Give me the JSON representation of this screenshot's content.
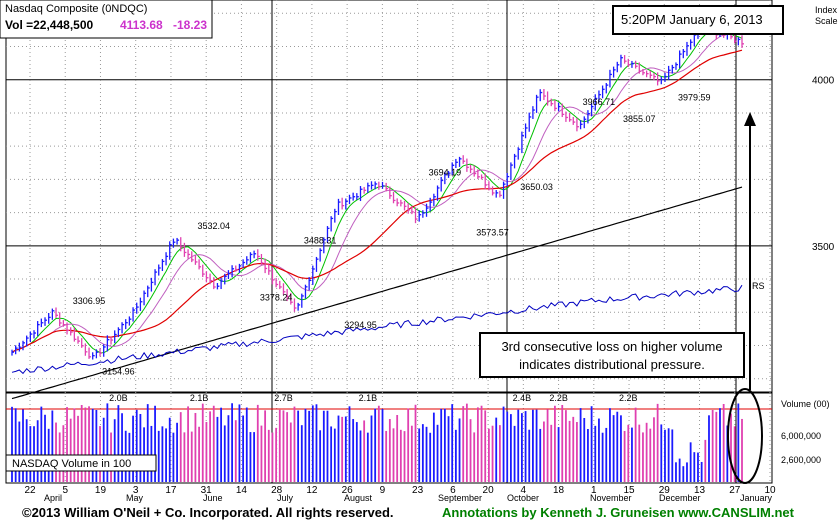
{
  "header": {
    "title": "Nasdaq Composite  (0NDQC)",
    "volume": "Vol =22,448,500",
    "price": "4113.68",
    "change": "-18.23",
    "timestamp": "5:20PM  January 6, 2013",
    "scale_label_1": "Index",
    "scale_label_2": "Scale"
  },
  "callout": {
    "line1": "3rd consecutive loss on higher volume",
    "line2": "indicates distributional pressure."
  },
  "volume_panel": {
    "label": "NASDAQ Volume in 100",
    "axis_title": "Volume (00)",
    "tick_1": "6,000,000",
    "tick_2": "2,600,000"
  },
  "footer": {
    "copyright": "©2013 William O'Neil + Co. Incorporated. All rights reserved.",
    "annotations": "Annotations by Kenneth J. Gruneisen www.CANSLIM.net"
  },
  "colors": {
    "up_bar": "#1a1aff",
    "down_bar": "#e040b0",
    "ma_short": "#00c000",
    "ma_mid": "#c060c0",
    "ma_50": "#e00000",
    "ma_200": "#000000",
    "rs_line": "#0000c0",
    "price_text": "#cc33cc"
  },
  "chart_data": {
    "type": "ohlc",
    "y_axis": {
      "ticks": [
        3500,
        4000
      ],
      "ylim": [
        3060,
        4240
      ]
    },
    "volume_axis": {
      "ticks": [
        "6,000,000",
        "2,600,000"
      ]
    },
    "x_axis": {
      "day_ticks": [
        "22",
        "5",
        "19",
        "3",
        "17",
        "31",
        "14",
        "28",
        "12",
        "26",
        "9",
        "23",
        "6",
        "20",
        "4",
        "18",
        "1",
        "15",
        "29",
        "13",
        "27",
        "10"
      ],
      "months": [
        "April",
        "May",
        "June",
        "July",
        "August",
        "September",
        "October",
        "November",
        "December",
        "January"
      ]
    },
    "series": [
      {
        "name": "RS",
        "values": []
      }
    ],
    "anchors": [
      {
        "x": "Mar 22",
        "y": 3180
      },
      {
        "x": "Apr 2",
        "y": 3300
      },
      {
        "x": "Apr 10",
        "y": 3160
      },
      {
        "x": "Apr 24",
        "y": 3300
      },
      {
        "x": "May 15",
        "y": 3520
      },
      {
        "x": "May 25",
        "y": 3380
      },
      {
        "x": "Jun 8",
        "y": 3480
      },
      {
        "x": "Jun 18",
        "y": 3300
      },
      {
        "x": "Jul 6",
        "y": 3620
      },
      {
        "x": "Aug 3",
        "y": 3690
      },
      {
        "x": "Aug 17",
        "y": 3580
      },
      {
        "x": "Sep 14",
        "y": 3770
      },
      {
        "x": "Oct 5",
        "y": 3650
      },
      {
        "x": "Nov 1",
        "y": 3960
      },
      {
        "x": "Nov 15",
        "y": 3860
      },
      {
        "x": "Dec 10",
        "y": 4060
      },
      {
        "x": "Dec 20",
        "y": 3990
      },
      {
        "x": "Jan 2",
        "y": 4160
      },
      {
        "x": "Jan 6",
        "y": 4114
      }
    ],
    "annotations": [
      {
        "label": "3306.95",
        "value": 3306.95
      },
      {
        "label": "3154.96",
        "value": 3154.96
      },
      {
        "label": "3532.04",
        "value": 3532.04
      },
      {
        "label": "3378.24",
        "value": 3378.24
      },
      {
        "label": "3488.31",
        "value": 3488.31
      },
      {
        "label": "3294.95",
        "value": 3294.95
      },
      {
        "label": "3694.19",
        "value": 3694.19
      },
      {
        "label": "3573.57",
        "value": 3573.57
      },
      {
        "label": "3650.03",
        "value": 3650.03
      },
      {
        "label": "3966.71",
        "value": 3966.71
      },
      {
        "label": "3855.07",
        "value": 3855.07
      },
      {
        "label": "3979.59",
        "value": 3979.59
      }
    ],
    "volume_labels": [
      "2.0B",
      "2.1B",
      "2.7B",
      "2.1B",
      "2.4B",
      "2.2B",
      "2.2B"
    ],
    "rs_label": "RS"
  }
}
